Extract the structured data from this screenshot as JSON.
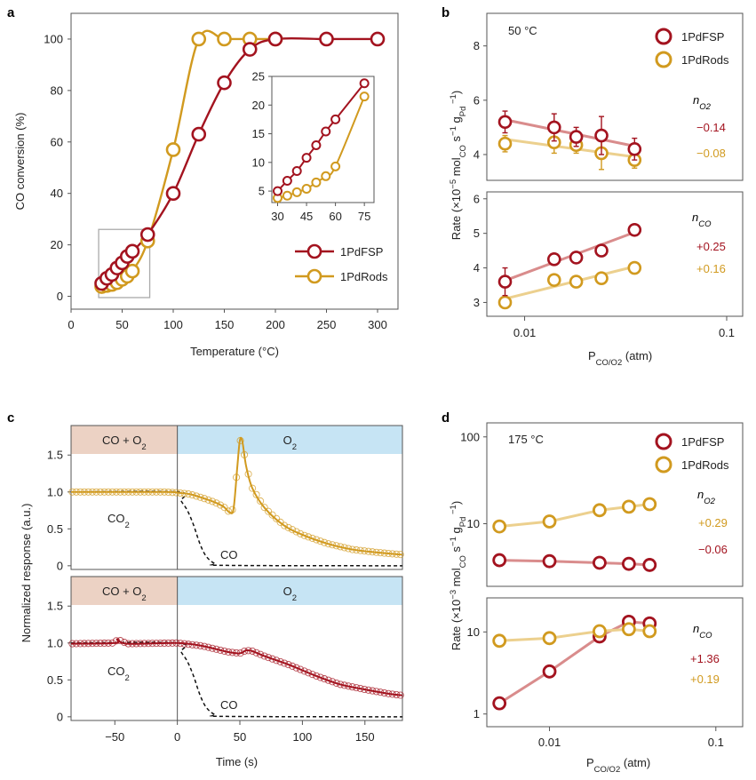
{
  "colors": {
    "fsp": "#a3131f",
    "rods": "#d19a1f",
    "fsp_light": "#d98c8c",
    "rods_light": "#ecd08e",
    "band_left": "#ecd2c4",
    "band_right": "#c6e4f4"
  },
  "chart_data": [
    {
      "panel": "a",
      "type": "line",
      "xlabel": "Temperature (°C)",
      "ylabel": "CO conversion (%)",
      "xlim": [
        0,
        320
      ],
      "ylim": [
        -5,
        110
      ],
      "xticks": [
        0,
        50,
        100,
        150,
        200,
        250,
        300
      ],
      "yticks": [
        0,
        20,
        40,
        60,
        80,
        100
      ],
      "legend": [
        "1PdFSP",
        "1PdRods"
      ],
      "series": [
        {
          "name": "1PdFSP",
          "x": [
            30,
            35,
            40,
            45,
            50,
            55,
            60,
            75,
            100,
            125,
            150,
            175,
            200,
            250,
            300
          ],
          "y": [
            5,
            7,
            8.5,
            11,
            13,
            15.5,
            17.5,
            24,
            40,
            63,
            83,
            96,
            100,
            100,
            100
          ]
        },
        {
          "name": "1PdRods",
          "x": [
            30,
            35,
            40,
            45,
            50,
            55,
            60,
            75,
            100,
            125,
            150,
            175,
            200
          ],
          "y": [
            3.8,
            4.2,
            4.6,
            5.3,
            6.6,
            7.8,
            9.8,
            21.5,
            57,
            100,
            100,
            100,
            100
          ]
        }
      ],
      "inset": {
        "xlim": [
          27,
          80
        ],
        "ylim": [
          3,
          25
        ],
        "xticks": [
          30,
          45,
          60,
          75
        ],
        "yticks": [
          5,
          10,
          15,
          20,
          25
        ],
        "series": [
          {
            "name": "1PdFSP",
            "x": [
              30,
              35,
              40,
              45,
              50,
              55,
              60,
              75
            ],
            "y": [
              5,
              6.8,
              8.5,
              10.8,
              13,
              15.4,
              17.5,
              23.8
            ]
          },
          {
            "name": "1PdRods",
            "x": [
              30,
              35,
              40,
              45,
              50,
              55,
              60,
              75
            ],
            "y": [
              3.8,
              4.2,
              4.8,
              5.4,
              6.5,
              7.6,
              9.3,
              21.5
            ]
          }
        ]
      }
    },
    {
      "panel": "b",
      "type": "scatter",
      "title": "50 °C",
      "legend": [
        "1PdFSP",
        "1PdRods"
      ],
      "ylabel": "Rate (×10⁻⁵ molCO s⁻¹ gPd⁻¹)",
      "xlabel": "PCO/O2 (atm)",
      "xscale": "log",
      "xlim": [
        0.0065,
        0.12
      ],
      "xticks": [
        0.01,
        0.1
      ],
      "xtick_labels": [
        "0.01",
        "0.1"
      ],
      "order_label_top": "nO2",
      "order_label_bottom": "nCO",
      "top": {
        "ylim": [
          3.05,
          9.2
        ],
        "yticks": [
          4,
          6,
          8
        ],
        "series": [
          {
            "name": "1PdFSP",
            "x": [
              0.008,
              0.014,
              0.018,
              0.024,
              0.035
            ],
            "y": [
              5.2,
              5.0,
              4.65,
              4.7,
              4.2
            ],
            "err": [
              0.4,
              0.5,
              0.35,
              0.7,
              0.4
            ],
            "order": "−0.14"
          },
          {
            "name": "1PdRods",
            "x": [
              0.008,
              0.014,
              0.018,
              0.024,
              0.035
            ],
            "y": [
              4.4,
              4.45,
              4.35,
              4.05,
              3.8
            ],
            "err": [
              0.3,
              0.4,
              0.3,
              0.6,
              0.3
            ],
            "order": "−0.08"
          }
        ]
      },
      "bottom": {
        "ylim": [
          2.6,
          6.2
        ],
        "yticks": [
          3,
          4,
          5,
          6
        ],
        "series": [
          {
            "name": "1PdFSP",
            "x": [
              0.008,
              0.014,
              0.018,
              0.024,
              0.035
            ],
            "y": [
              3.6,
              4.25,
              4.3,
              4.5,
              5.1
            ],
            "err": [
              0.4,
              0.15,
              0.15,
              0.15,
              0.1
            ],
            "order": "+0.25"
          },
          {
            "name": "1PdRods",
            "x": [
              0.008,
              0.014,
              0.018,
              0.024,
              0.035
            ],
            "y": [
              3.0,
              3.65,
              3.6,
              3.7,
              4.0
            ],
            "err": [
              0.1,
              0.1,
              0.1,
              0.05,
              0.1
            ],
            "order": "+0.16"
          }
        ]
      }
    },
    {
      "panel": "c",
      "type": "line",
      "xlabel": "Time (s)",
      "ylabel": "Normalized response (a.u.)",
      "xlim": [
        -85,
        180
      ],
      "xticks": [
        -50,
        0,
        50,
        100,
        150
      ],
      "ylim": [
        -0.05,
        1.9
      ],
      "yticks": [
        0,
        0.5,
        1.0,
        1.5
      ],
      "ytick_labels": [
        "0",
        "0.5",
        "1.0",
        "1.5"
      ],
      "band_left": "CO + O2",
      "band_right": "O2",
      "top": {
        "series_label": "CO2",
        "co_label": "CO",
        "co2_points": [
          [
            -85,
            1.0
          ],
          [
            -10,
            1.0
          ],
          [
            0,
            0.99
          ],
          [
            10,
            0.97
          ],
          [
            20,
            0.92
          ],
          [
            30,
            0.86
          ],
          [
            37,
            0.8
          ],
          [
            42,
            0.72
          ],
          [
            45,
            0.78
          ],
          [
            48,
            1.35
          ],
          [
            50,
            1.7
          ],
          [
            52,
            1.68
          ],
          [
            55,
            1.35
          ],
          [
            60,
            1.05
          ],
          [
            70,
            0.78
          ],
          [
            85,
            0.55
          ],
          [
            100,
            0.42
          ],
          [
            120,
            0.3
          ],
          [
            140,
            0.22
          ],
          [
            160,
            0.18
          ],
          [
            180,
            0.15
          ]
        ]
      },
      "bottom": {
        "series_label": "CO2",
        "co_label": "CO",
        "co2_points": [
          [
            -85,
            0.99
          ],
          [
            -50,
            1.0
          ],
          [
            -48,
            1.05
          ],
          [
            -40,
            0.99
          ],
          [
            0,
            1.0
          ],
          [
            20,
            0.96
          ],
          [
            40,
            0.88
          ],
          [
            50,
            0.86
          ],
          [
            55,
            0.9
          ],
          [
            60,
            0.89
          ],
          [
            70,
            0.82
          ],
          [
            90,
            0.7
          ],
          [
            110,
            0.56
          ],
          [
            130,
            0.44
          ],
          [
            150,
            0.37
          ],
          [
            170,
            0.31
          ],
          [
            180,
            0.29
          ]
        ]
      },
      "co_points": [
        [
          -85,
          1.0
        ],
        [
          0,
          1.0
        ],
        [
          3,
          0.88
        ],
        [
          8,
          0.75
        ],
        [
          13,
          0.55
        ],
        [
          18,
          0.3
        ],
        [
          23,
          0.13
        ],
        [
          30,
          0.03
        ],
        [
          40,
          0.005
        ],
        [
          180,
          0.0
        ]
      ]
    },
    {
      "panel": "d",
      "type": "scatter",
      "title": "175 °C",
      "legend": [
        "1PdFSP",
        "1PdRods"
      ],
      "ylabel": "Rate (×10⁻³ molCO s⁻¹ gPd⁻¹)",
      "xlabel": "PCO/O2 (atm)",
      "xscale": "log",
      "yscale": "log",
      "xlim": [
        0.0042,
        0.145
      ],
      "xticks": [
        0.01,
        0.1
      ],
      "xtick_labels": [
        "0.01",
        "0.1"
      ],
      "order_label_top": "nO2",
      "order_label_bottom": "nCO",
      "top": {
        "ylim": [
          1.9,
          145
        ],
        "yticks": [
          10,
          100
        ],
        "ytick_labels": [
          "10",
          "100"
        ],
        "series": [
          {
            "name": "1PdRods",
            "x": [
              0.005,
              0.01,
              0.02,
              0.03,
              0.04
            ],
            "y": [
              9.3,
              10.6,
              14.3,
              15.7,
              16.8
            ],
            "order": "+0.29"
          },
          {
            "name": "1PdFSP",
            "x": [
              0.005,
              0.01,
              0.02,
              0.03,
              0.04
            ],
            "y": [
              3.8,
              3.7,
              3.55,
              3.45,
              3.35
            ],
            "order": "−0.06"
          }
        ]
      },
      "bottom": {
        "ylim": [
          0.7,
          26
        ],
        "yticks": [
          1,
          10
        ],
        "ytick_labels": [
          "1",
          "10"
        ],
        "series": [
          {
            "name": "1PdFSP",
            "x": [
              0.005,
              0.01,
              0.02,
              0.03,
              0.04
            ],
            "y": [
              1.35,
              3.3,
              8.8,
              13.3,
              12.7
            ],
            "order": "+1.36"
          },
          {
            "name": "1PdRods",
            "x": [
              0.005,
              0.01,
              0.02,
              0.03,
              0.04
            ],
            "y": [
              7.8,
              8.4,
              10.2,
              10.8,
              10.2
            ],
            "order": "+0.19"
          }
        ]
      }
    }
  ]
}
